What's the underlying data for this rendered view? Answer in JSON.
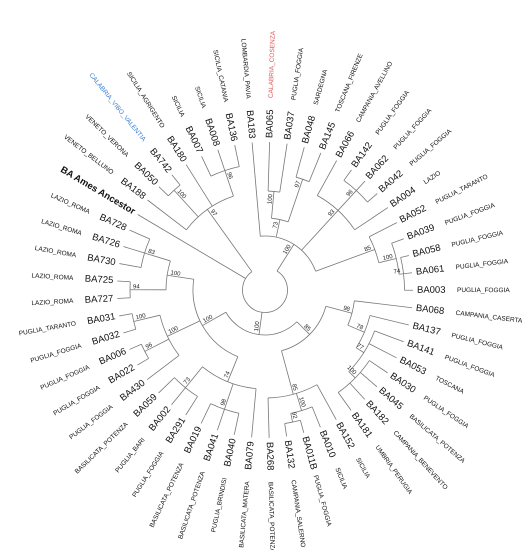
{
  "leaves": [
    {
      "id": "BA183",
      "region": "LOMBARDIA_PAVIA"
    },
    {
      "id": "BA065",
      "region": "CALABRIA_COSENZA",
      "region_color": "#e05a5a"
    },
    {
      "id": "BA037",
      "region": "PUGLIA_FOGGIA"
    },
    {
      "id": "BA048",
      "region": "SARDEGNA"
    },
    {
      "id": "BA145",
      "region": "TOSCANA_FIRENZE"
    },
    {
      "id": "BA066",
      "region": "CAMPANIA_AVELLINO"
    },
    {
      "id": "BA142",
      "region": "PUGLIA_FOGGIA"
    },
    {
      "id": "BA062",
      "region": "PUGLIA_FOGGIA"
    },
    {
      "id": "BA042",
      "region": "PUGLIA_FOGGIA"
    },
    {
      "id": "BA004",
      "region": "LAZIO"
    },
    {
      "id": "BA052",
      "region": "PUGLIA_TARANTO"
    },
    {
      "id": "BA039",
      "region": "PUGLIA_FOGGIA"
    },
    {
      "id": "BA058",
      "region": "PUGLIA_FOGGIA"
    },
    {
      "id": "BA061",
      "region": "PUGLIA_FOGGIA"
    },
    {
      "id": "BA003",
      "region": "PUGLIA_FOGGIA"
    },
    {
      "id": "BA068",
      "region": "CAMPANIA_CASERTA"
    },
    {
      "id": "BA137",
      "region": "PUGLIA_FOGGIA"
    },
    {
      "id": "BA141",
      "region": "PUGLIA_FOGGIA"
    },
    {
      "id": "BA053",
      "region": "TOSCANA"
    },
    {
      "id": "BA030",
      "region": "PUGLIA_FOGGIA"
    },
    {
      "id": "BA045",
      "region": "BASILICATA_POTENZA"
    },
    {
      "id": "BA182",
      "region": "CAMPANIA_BENEVENTO"
    },
    {
      "id": "BA181",
      "region": "UMBRIA_PERUGIA"
    },
    {
      "id": "BA152",
      "region": "SICILIA"
    },
    {
      "id": "BA010",
      "region": "SICILIA"
    },
    {
      "id": "BA011B",
      "region": "PUGLIA_FOGGIA"
    },
    {
      "id": "BA132",
      "region": "CAMPANIA_SALERNO"
    },
    {
      "id": "BA268",
      "region": "BASILICATA_POTENZA"
    },
    {
      "id": "BA079",
      "region": "BASILICATA_MATERA"
    },
    {
      "id": "BA040",
      "region": "PUGLIA_BRINDISI"
    },
    {
      "id": "BA041",
      "region": "BASILICATA_POTENZA"
    },
    {
      "id": "BA019",
      "region": "BASILICATA_POTENZA"
    },
    {
      "id": "BA291",
      "region": "PUGLIA_FOGGIA"
    },
    {
      "id": "BA002",
      "region": "PUGLIA_BARI"
    },
    {
      "id": "BA059",
      "region": "BASILICATA_POTENZA"
    },
    {
      "id": "BA430",
      "region": "PUGLIA_FOGGIA"
    },
    {
      "id": "BA022",
      "region": "PUGLIA_FOGGIA"
    },
    {
      "id": "BA006",
      "region": "PUGLIA_FOGGIA"
    },
    {
      "id": "BA032",
      "region": "PUGLIA_FOGGIA"
    },
    {
      "id": "BA031",
      "region": "PUGLIA_TARANTO"
    },
    {
      "id": "BA727",
      "region": "LAZIO_ROMA"
    },
    {
      "id": "BA725",
      "region": "LAZIO_ROMA"
    },
    {
      "id": "BA730",
      "region": "LAZIO_ROMA"
    },
    {
      "id": "BA726",
      "region": "LAZIO_ROMA"
    },
    {
      "id": "BA728",
      "region": "LAZIO_ROMA"
    },
    {
      "id": "BA Ames Ancestor",
      "bold": true
    },
    {
      "id": "BA188",
      "region": "VENETO_BELLUNO"
    },
    {
      "id": "BA050",
      "region": "VENETO_VERONA"
    },
    {
      "id": "BA742",
      "region": "CALABRIA_VIBO_VALENTIA",
      "region_color": "#3a7fd5"
    },
    {
      "id": "BA180",
      "region": "SICILIA_AGRIGENTO"
    },
    {
      "id": "BA007",
      "region": "SICILIA"
    },
    {
      "id": "BA008",
      "region": "SICILIA"
    },
    {
      "id": "BA136",
      "region": "SICILIA_CATANIA"
    }
  ],
  "bootstrap": [
    100,
    97,
    73,
    93,
    96,
    85,
    100,
    74,
    98,
    78,
    77,
    100,
    85,
    100,
    92,
    74,
    98,
    73,
    100,
    96,
    100,
    100,
    94,
    83,
    97,
    100,
    96,
    100,
    100,
    85,
    100
  ]
}
